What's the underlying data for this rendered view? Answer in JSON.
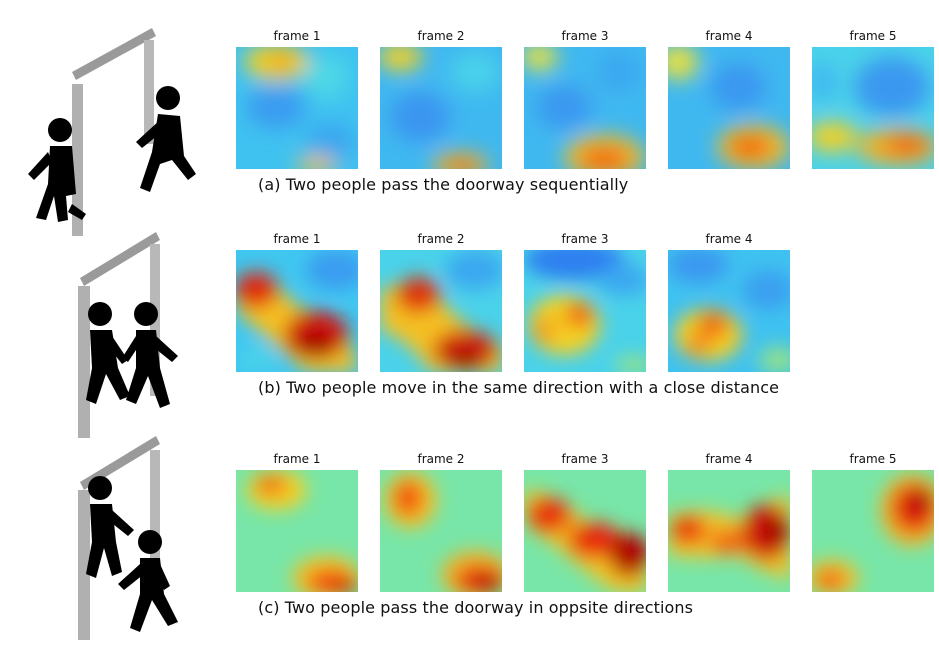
{
  "rows": [
    {
      "id": "a",
      "frames": [
        "frame 1",
        "frame 2",
        "frame 3",
        "frame 4",
        "frame 5"
      ],
      "caption": "(a) Two people pass the doorway sequentially"
    },
    {
      "id": "b",
      "frames": [
        "frame 1",
        "frame 2",
        "frame 3",
        "frame 4"
      ],
      "caption": "(b) Two people move in the same direction with a close distance"
    },
    {
      "id": "c",
      "frames": [
        "frame 1",
        "frame 2",
        "frame 3",
        "frame 4",
        "frame 5"
      ],
      "caption": "(c) Two people pass the doorway in oppsite directions"
    }
  ],
  "colors": {
    "cold": "#2f8ff0",
    "cool": "#3fc7f0",
    "mid": "#63e6be",
    "warm": "#f5d020",
    "hot": "#f06018",
    "hottest": "#b40000",
    "door": "#a8a8a8",
    "person": "#000000"
  }
}
